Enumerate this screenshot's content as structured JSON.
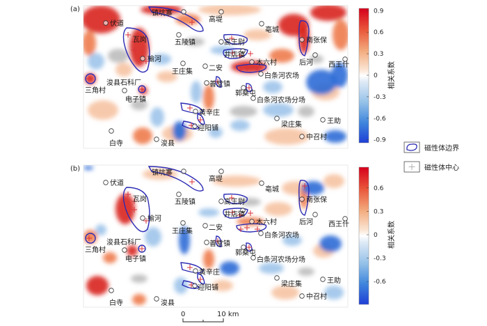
{
  "figure": {
    "panels": [
      {
        "label": "(a)",
        "colorbar_ticks": [
          "0.9",
          "0.6",
          "0.3",
          "0",
          "-0.3",
          "-0.6",
          "-0.9"
        ]
      },
      {
        "label": "(b)",
        "colorbar_ticks": [
          "0.6",
          "0.3",
          "0",
          "-0.3",
          "-0.6"
        ]
      }
    ],
    "colorbar_label": "相关系数",
    "places": [
      "伏道",
      "镇坑寨",
      "高堤",
      "亳城",
      "南张保",
      "瓦岗",
      "五陵镇",
      "高王尉",
      "井店镇",
      "木六村",
      "后河",
      "西王什",
      "榆河",
      "二安",
      "王庄集",
      "白条河农场",
      "浚县石科厂",
      "三角村",
      "善堂镇",
      "郭桑屯",
      "电子镇",
      "白条河农场分场",
      "黄辛庄",
      "王助",
      "迎阳铺",
      "梁庄集",
      "白寺",
      "浚县",
      "中召村"
    ],
    "legend": [
      {
        "label": "磁性体边界",
        "symbol": "boundary-outline"
      },
      {
        "label": "磁性体中心",
        "symbol": "cross"
      }
    ],
    "scale_bar": {
      "start_label": "0",
      "end_label": "10 km"
    },
    "colors": {
      "boundary": "#2a2ab4",
      "center": "#d9333a",
      "positive_max": "#d6001c",
      "negative_max": "#1f3fd6"
    }
  }
}
